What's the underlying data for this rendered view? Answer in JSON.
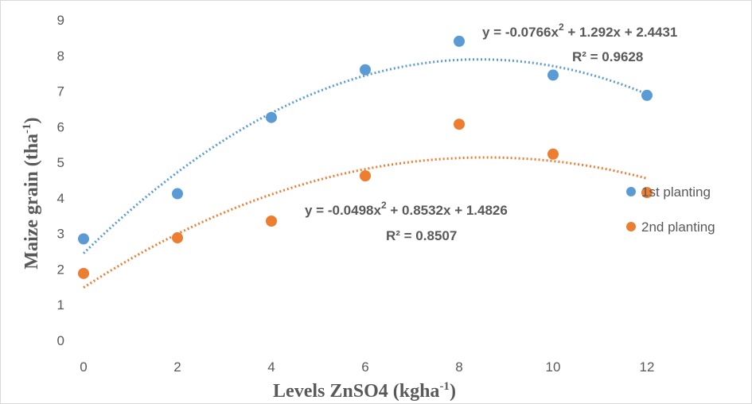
{
  "chart_data": {
    "type": "scatter",
    "xlabel": {
      "text": "Levels ZnSO4 (kgha",
      "sup": "-1",
      "close": ")"
    },
    "ylabel": {
      "text": "Maize grain (tha",
      "sup": "-1",
      "close": ")"
    },
    "xlim": [
      0,
      12
    ],
    "ylim": [
      0,
      9
    ],
    "xticks": [
      "0",
      "2",
      "4",
      "6",
      "8",
      "10",
      "12"
    ],
    "yticks": [
      "0",
      "1",
      "2",
      "3",
      "4",
      "5",
      "6",
      "7",
      "8",
      "9"
    ],
    "grid": false,
    "legend_position": "right",
    "series": [
      {
        "name": "1st planting",
        "color": "#5B9BD5",
        "x": [
          0,
          2,
          4,
          6,
          8,
          10,
          12
        ],
        "y": [
          2.85,
          4.12,
          6.26,
          7.6,
          8.4,
          7.45,
          6.88
        ],
        "trendline": {
          "type": "polynomial",
          "coefficients": {
            "a": -0.0766,
            "b": 1.292,
            "c": 2.4431
          },
          "equation": {
            "lead": "y = -0.0766x",
            "sup": "2",
            "tail": " + 1.292x + 2.4431"
          },
          "r2": "R² = 0.9628"
        }
      },
      {
        "name": "2nd planting",
        "color": "#ED7D31",
        "x": [
          0,
          2,
          4,
          6,
          8,
          10,
          12
        ],
        "y": [
          1.88,
          2.88,
          3.35,
          4.62,
          6.07,
          5.23,
          4.15
        ],
        "trendline": {
          "type": "polynomial",
          "coefficients": {
            "a": -0.0498,
            "b": 0.8532,
            "c": 1.4826
          },
          "equation": {
            "lead": "y = -0.0498x",
            "sup": "2",
            "tail": " + 0.8532x + 1.4826"
          },
          "r2": "R² = 0.8507"
        }
      }
    ]
  }
}
